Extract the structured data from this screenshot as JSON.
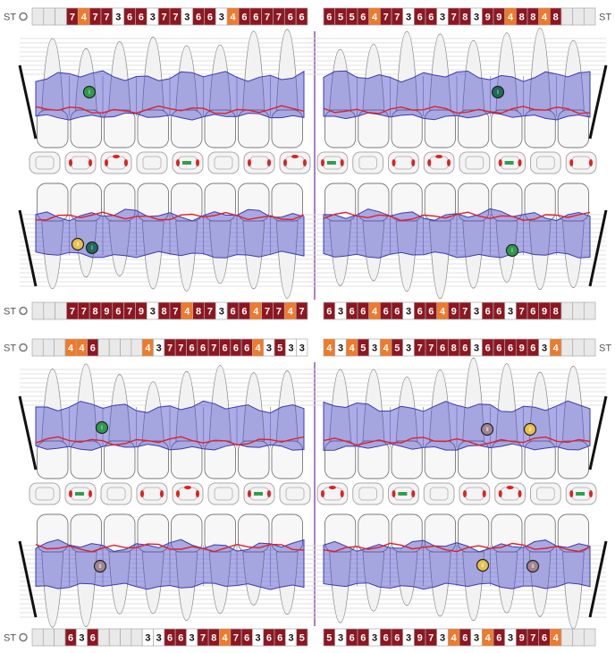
{
  "rows": [
    {
      "label": "ST",
      "right_label": "ST",
      "left": [
        null,
        null,
        null,
        7,
        4,
        7,
        7,
        3,
        6,
        6,
        3,
        7,
        7,
        3,
        6,
        6,
        3,
        4,
        6,
        6,
        7,
        7,
        6,
        6
      ],
      "right": [
        6,
        5,
        5,
        6,
        4,
        7,
        7,
        3,
        6,
        6,
        3,
        7,
        8,
        3,
        9,
        9,
        4,
        8,
        8,
        4,
        8,
        null,
        null,
        null
      ]
    },
    {
      "label": "ST",
      "left": [
        null,
        null,
        null,
        7,
        7,
        8,
        9,
        6,
        7,
        9,
        3,
        8,
        7,
        4,
        8,
        7,
        3,
        6,
        6,
        4,
        7,
        7,
        4,
        7
      ],
      "right": [
        6,
        3,
        6,
        6,
        4,
        6,
        6,
        3,
        6,
        6,
        4,
        9,
        7,
        3,
        6,
        6,
        3,
        7,
        6,
        9,
        8,
        null,
        null,
        null
      ]
    },
    {
      "label": "ST",
      "right_label": "ST",
      "left": [
        null,
        null,
        null,
        4,
        4,
        6,
        null,
        null,
        null,
        null,
        4,
        3,
        7,
        7,
        6,
        6,
        7,
        6,
        6,
        6,
        4,
        3,
        5,
        3,
        3
      ],
      "right": [
        4,
        3,
        4,
        5,
        3,
        4,
        5,
        3,
        7,
        7,
        6,
        8,
        6,
        3,
        6,
        6,
        6,
        9,
        6,
        3,
        4,
        null,
        null,
        null
      ]
    },
    {
      "label": "ST",
      "left": [
        null,
        null,
        null,
        6,
        3,
        6,
        null,
        null,
        null,
        null,
        3,
        3,
        6,
        6,
        3,
        7,
        8,
        4,
        7,
        6,
        3,
        6,
        6,
        3,
        5
      ],
      "right": [
        5,
        3,
        6,
        6,
        3,
        6,
        6,
        3,
        9,
        7,
        3,
        4,
        6,
        3,
        4,
        6,
        3,
        9,
        7,
        6,
        4,
        null,
        null,
        null
      ]
    }
  ],
  "markers": [
    {
      "label": "I",
      "color": "#2e9b4a"
    },
    {
      "label": "I",
      "color": "#1f6b5a"
    },
    {
      "label": "II",
      "color": "#e8c14a"
    },
    {
      "label": "I",
      "color": "#1f6b5a"
    },
    {
      "label": "I",
      "color": "#2e9b4a"
    },
    {
      "label": "I",
      "color": "#2e9b4a"
    },
    {
      "label": "II",
      "color": "#a08590"
    },
    {
      "label": "II",
      "color": "#e8c14a"
    },
    {
      "label": "II",
      "color": "#a08590"
    },
    {
      "label": "II",
      "color": "#e8c14a"
    },
    {
      "label": "II",
      "color": "#a08590"
    }
  ]
}
